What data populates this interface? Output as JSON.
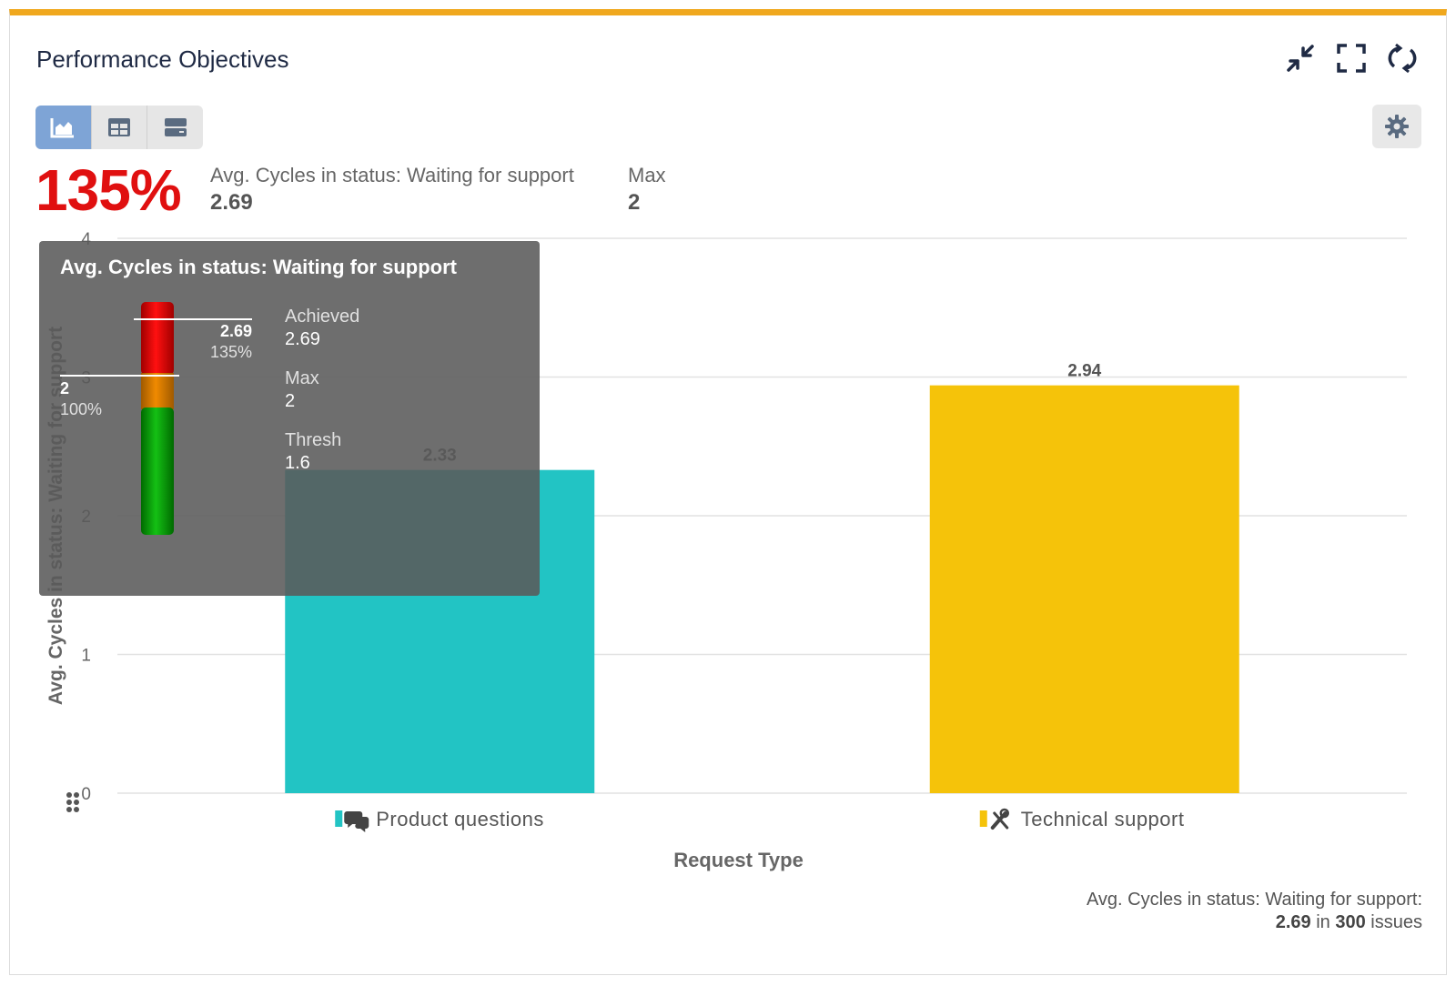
{
  "widget": {
    "title": "Performance Objectives",
    "accent_color": "#f0a81e",
    "header_icons": [
      "collapse-icon",
      "fullscreen-icon",
      "refresh-icon"
    ],
    "view_toggles": [
      "chart-view-icon",
      "table-view-icon",
      "list-view-icon"
    ],
    "active_view": "chart"
  },
  "summary": {
    "kpi_percent": "135%",
    "kpi_color": "#e01010",
    "metric_label": "Avg. Cycles in status: Waiting for support",
    "metric_value": "2.69",
    "max_label": "Max",
    "max_value": "2"
  },
  "tooltip": {
    "title": "Avg. Cycles in status: Waiting for support",
    "achieved_label": "Achieved",
    "achieved_value": "2.69",
    "achieved_percent": "135%",
    "max_label": "Max",
    "max_value": "2",
    "max_percent": "100%",
    "thresh_label": "Thresh",
    "thresh_value": "1.6",
    "gauge_colors": [
      "#e01010",
      "#e08000",
      "#10a010"
    ]
  },
  "chart_data": {
    "type": "bar",
    "categories": [
      "Product questions",
      "Technical support"
    ],
    "category_icons": [
      "chat-icon",
      "tools-icon"
    ],
    "values": [
      2.33,
      2.94
    ],
    "value_labels": [
      "2.33",
      "2.94"
    ],
    "colors": [
      "#22c4c4",
      "#f5c30a"
    ],
    "xlabel": "Request Type",
    "ylabel": "Avg. Cycles in status: Waiting for support",
    "ylim": [
      0,
      4
    ],
    "yticks": [
      "0",
      "1",
      "2",
      "3",
      "4"
    ],
    "grid": true
  },
  "footer": {
    "label": "Avg. Cycles in status: Waiting for support:",
    "value": "2.69",
    "in_text": "in",
    "count": "300",
    "issues_text": "issues"
  }
}
